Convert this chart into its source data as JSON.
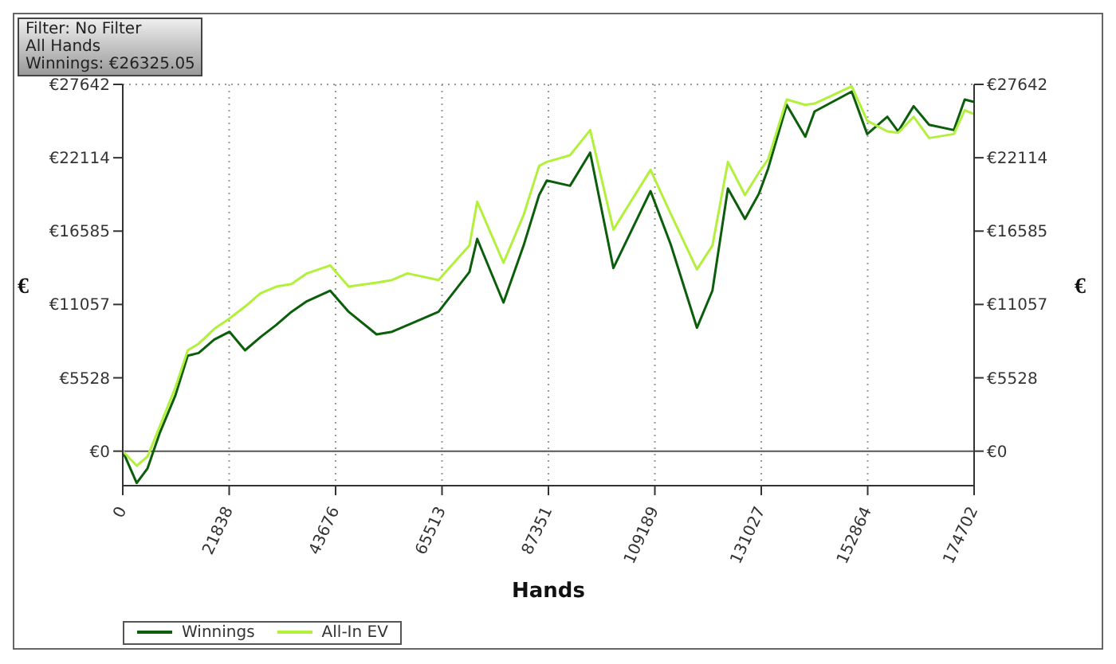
{
  "chart_data": {
    "type": "line",
    "xlabel": "Hands",
    "ylabel": "€",
    "y2label": "€",
    "annotations": [
      "Filter: No Filter",
      "All Hands",
      "Winnings: €26325.05"
    ],
    "x": [
      0,
      2858,
      5082,
      7622,
      10798,
      13339,
      15562,
      18738,
      21914,
      25090,
      28266,
      31442,
      34618,
      37794,
      42558,
      46370,
      52086,
      55262,
      58438,
      64790,
      71142,
      72731,
      78130,
      82258,
      85434,
      87022,
      91786,
      95915,
      100679,
      108301,
      112430,
      117830,
      121006,
      124182,
      127676,
      130534,
      132440,
      136252,
      140063,
      141969,
      149591,
      152767,
      156895,
      159119,
      162295,
      165471,
      170552,
      172775,
      174702
    ],
    "series": [
      {
        "name": "Winnings",
        "color": "#0b5e0b",
        "values": [
          0,
          -2400,
          -1300,
          1400,
          4200,
          7200,
          7400,
          8400,
          9000,
          7600,
          8600,
          9500,
          10500,
          11300,
          12100,
          10500,
          8800,
          9000,
          9500,
          10500,
          13500,
          16000,
          11200,
          15500,
          19300,
          20400,
          20000,
          22500,
          13800,
          19600,
          15600,
          9300,
          12100,
          19800,
          17500,
          19400,
          21300,
          26100,
          23700,
          25600,
          27100,
          23900,
          25200,
          24100,
          26000,
          24600,
          24200,
          26500,
          26325.05
        ]
      },
      {
        "name": "All-In EV",
        "color": "#b3f03c",
        "values": [
          0,
          -1100,
          -400,
          1900,
          4800,
          7600,
          8100,
          9200,
          10000,
          10900,
          11900,
          12400,
          12600,
          13400,
          14000,
          12400,
          12700,
          12900,
          13400,
          12900,
          15500,
          18800,
          14200,
          17800,
          21500,
          21800,
          22300,
          24200,
          16700,
          21200,
          17900,
          13700,
          15500,
          21800,
          19300,
          21000,
          22000,
          26500,
          26100,
          26200,
          27500,
          24900,
          24100,
          24000,
          25200,
          23600,
          23900,
          25700,
          25400
        ]
      }
    ],
    "xlim": [
      0,
      174702
    ],
    "xticks": [
      0,
      21838,
      43676,
      65513,
      87351,
      109189,
      131027,
      152864,
      174702
    ],
    "ylim": [
      -2600,
      27642
    ],
    "yticks": [
      {
        "value": 0,
        "label": "€0"
      },
      {
        "value": 5528,
        "label": "€5528"
      },
      {
        "value": 11057,
        "label": "€11057"
      },
      {
        "value": 16585,
        "label": "€16585"
      },
      {
        "value": 22114,
        "label": "€22114"
      },
      {
        "value": 27642,
        "label": "€27642"
      }
    ],
    "y2lim": [
      -2600,
      27642
    ],
    "y2ticks": [
      {
        "value": 0,
        "label": "€0"
      },
      {
        "value": 5528,
        "label": "€5528"
      },
      {
        "value": 11057,
        "label": "€11057"
      },
      {
        "value": 16585,
        "label": "€16585"
      },
      {
        "value": 22114,
        "label": "€22114"
      },
      {
        "value": 27642,
        "label": "€27642"
      }
    ],
    "ref_lines": [
      {
        "axis": "y",
        "value": 0,
        "color": "#555555",
        "line_style": "solid"
      }
    ],
    "grid": true,
    "legend": "bottom left",
    "marker": "none",
    "line_style": "solid"
  }
}
